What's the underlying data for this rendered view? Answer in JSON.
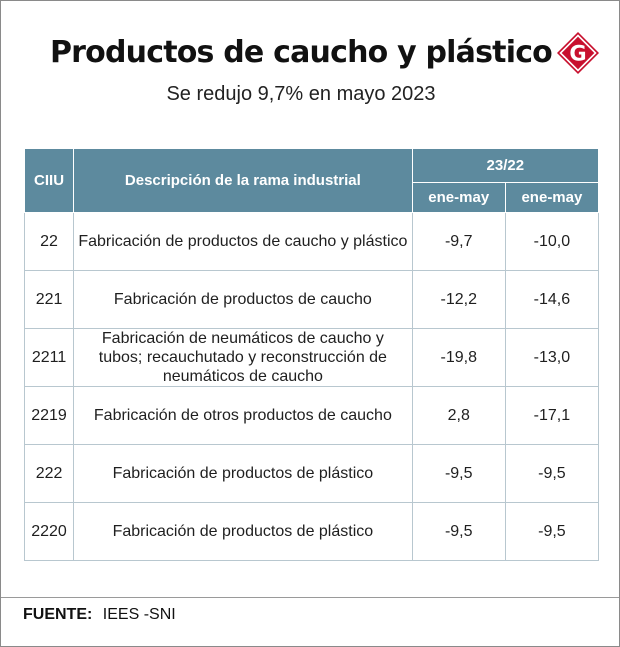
{
  "header": {
    "title": "Productos de caucho y plástico",
    "subtitle": "Se redujo 9,7% en mayo 2023",
    "logo_letter": "G"
  },
  "colors": {
    "header_bg": "#5d8a9e",
    "logo_red": "#c8102e"
  },
  "table": {
    "columns": {
      "ciiu": "CIIU",
      "description": "Descripción de la rama industrial",
      "group": "23/22",
      "col_a": "ene-may",
      "col_b": "ene-may"
    },
    "rows": [
      {
        "ciiu": "22",
        "description": "Fabricación de productos de caucho y plástico",
        "a": "-9,7",
        "b": "-10,0"
      },
      {
        "ciiu": "221",
        "description": "Fabricación de productos de caucho",
        "a": "-12,2",
        "b": "-14,6"
      },
      {
        "ciiu": "2211",
        "description": "Fabricación de neumáticos de caucho y tubos; recauchutado y reconstrucción de neumáticos de caucho",
        "a": "-19,8",
        "b": "-13,0"
      },
      {
        "ciiu": "2219",
        "description": "Fabricación de otros productos de caucho",
        "a": "2,8",
        "b": "-17,1"
      },
      {
        "ciiu": "222",
        "description": "Fabricación de productos de plástico",
        "a": "-9,5",
        "b": "-9,5"
      },
      {
        "ciiu": "2220",
        "description": "Fabricación de productos de plástico",
        "a": "-9,5",
        "b": "-9,5"
      }
    ]
  },
  "footer": {
    "source_label": "FUENTE:",
    "source_value": "IEES -SNI"
  }
}
